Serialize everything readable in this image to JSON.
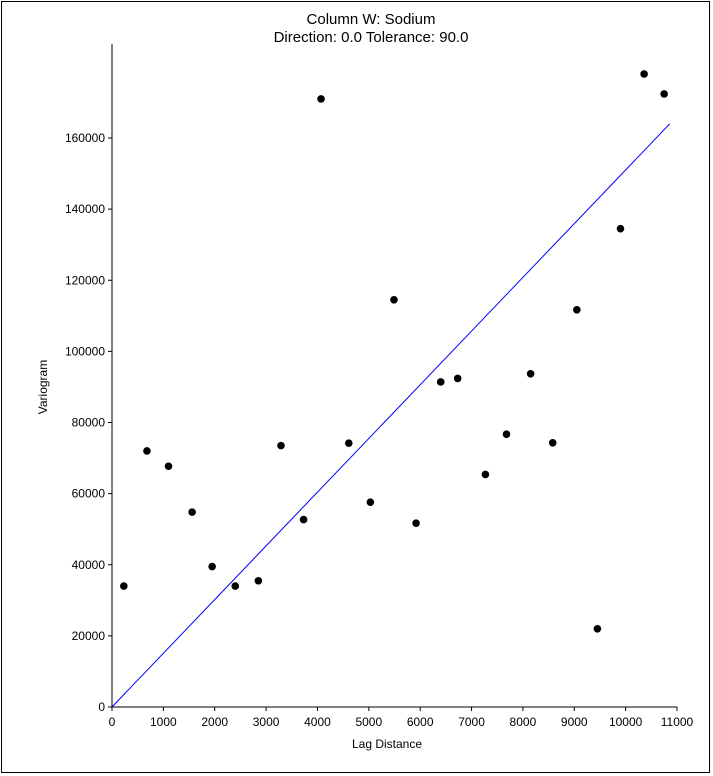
{
  "chart_data": {
    "type": "scatter",
    "title": "Column W:  Sodium",
    "subtitle": "Direction: 0.0   Tolerance: 90.0",
    "xlabel": "Lag Distance",
    "ylabel": "Variogram",
    "xlim": [
      0,
      11000
    ],
    "ylim": [
      0,
      170000
    ],
    "x_ticks": [
      0,
      1000,
      2000,
      3000,
      4000,
      5000,
      6000,
      7000,
      8000,
      9000,
      10000,
      11000
    ],
    "y_ticks": [
      0,
      20000,
      40000,
      60000,
      80000,
      100000,
      120000,
      140000,
      160000
    ],
    "grid": false,
    "legend": "none",
    "points": [
      {
        "x": 230,
        "y": 34000
      },
      {
        "x": 680,
        "y": 72000
      },
      {
        "x": 1100,
        "y": 67700
      },
      {
        "x": 1560,
        "y": 54800
      },
      {
        "x": 1950,
        "y": 39500
      },
      {
        "x": 2400,
        "y": 34000
      },
      {
        "x": 2850,
        "y": 35500
      },
      {
        "x": 3290,
        "y": 73500
      },
      {
        "x": 3730,
        "y": 52700
      },
      {
        "x": 4070,
        "y": 171000
      },
      {
        "x": 4610,
        "y": 74200
      },
      {
        "x": 5030,
        "y": 57600
      },
      {
        "x": 5490,
        "y": 114500
      },
      {
        "x": 5920,
        "y": 51700
      },
      {
        "x": 6400,
        "y": 91400
      },
      {
        "x": 6730,
        "y": 92400
      },
      {
        "x": 7270,
        "y": 65400
      },
      {
        "x": 7680,
        "y": 76700
      },
      {
        "x": 8150,
        "y": 93700
      },
      {
        "x": 8580,
        "y": 74300
      },
      {
        "x": 9050,
        "y": 111700
      },
      {
        "x": 9450,
        "y": 22000
      },
      {
        "x": 9900,
        "y": 134500
      },
      {
        "x": 10360,
        "y": 178000
      },
      {
        "x": 10750,
        "y": 172400
      }
    ],
    "fit_line": {
      "color": "#0000ff",
      "points": [
        {
          "x": 0,
          "y": 0
        },
        {
          "x": 10860,
          "y": 164000
        }
      ]
    },
    "point_color": "#000000"
  }
}
